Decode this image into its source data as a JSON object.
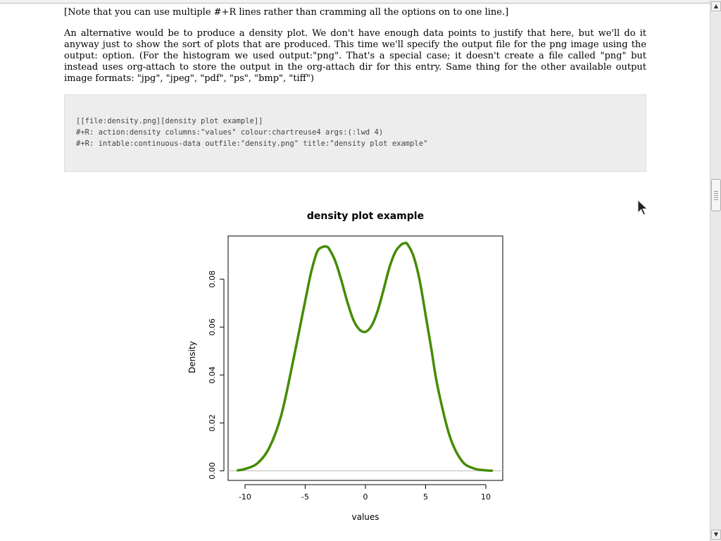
{
  "doc": {
    "para_note": "[Note that you can use multiple #+R lines rather than cramming all the options on to one line.]",
    "para_alt": "An alternative would be to produce a density plot. We don't have enough data points to justify that here, but we'll do it anyway just to show the sort of plots that are produced. This time we'll specify the output file for the png image using the output: option. (For the histogram we used output:\"png\". That's a special case; it doesn't create a file called \"png\" but instead uses org-attach to store the output in the org-attach dir for this entry. Same thing for the other available output image formats: \"jpg\", \"jpeg\", \"pdf\", \"ps\", \"bmp\", \"tiff\")",
    "code": [
      "[[file:density.png][density plot example]]",
      "#+R: action:density columns:\"values\" colour:chartreuse4 args:(:lwd 4)",
      "#+R: intable:continuous-data outfile:\"density.png\" title:\"density plot example\""
    ]
  },
  "chart_data": {
    "type": "line",
    "title": "density plot example",
    "xlabel": "values",
    "ylabel": "Density",
    "xlim": [
      -11.4,
      11.4
    ],
    "ylim": [
      -0.004,
      0.098
    ],
    "x_ticks": [
      -10,
      -5,
      0,
      5,
      10
    ],
    "y_ticks": [
      0.0,
      0.02,
      0.04,
      0.06,
      0.08
    ],
    "x_tick_labels": [
      "-10",
      "-5",
      "0",
      "5",
      "10"
    ],
    "y_tick_labels": [
      "0.00",
      "0.02",
      "0.04",
      "0.06",
      "0.08"
    ],
    "series": [
      {
        "color": "#458B00",
        "x": [
          -10.6,
          -10,
          -9,
          -8,
          -7,
          -6,
          -5,
          -4.5,
          -4,
          -3.5,
          -3.2,
          -3,
          -2.5,
          -2,
          -1.5,
          -1,
          -0.5,
          0,
          0.5,
          1,
          1.5,
          2,
          2.5,
          3,
          3.3,
          3.5,
          4,
          4.5,
          5,
          5.5,
          6,
          7,
          8,
          9,
          10,
          10.5
        ],
        "y": [
          0.0002,
          0.0008,
          0.003,
          0.0095,
          0.023,
          0.046,
          0.071,
          0.083,
          0.0915,
          0.0935,
          0.0935,
          0.0925,
          0.0875,
          0.0795,
          0.0705,
          0.063,
          0.059,
          0.058,
          0.0605,
          0.0665,
          0.0755,
          0.085,
          0.0915,
          0.0945,
          0.095,
          0.0945,
          0.0895,
          0.0795,
          0.065,
          0.05,
          0.035,
          0.0145,
          0.0042,
          0.001,
          0.0002,
          0.0001
        ]
      }
    ],
    "baseline": 0
  }
}
